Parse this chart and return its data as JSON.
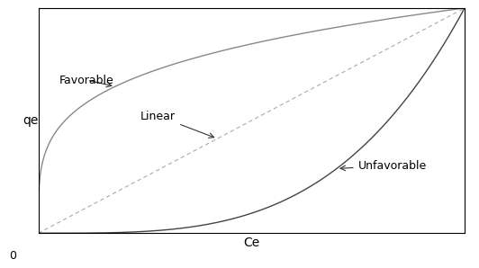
{
  "title": "",
  "xlabel": "Ce",
  "ylabel": "qe",
  "xlim": [
    0,
    1
  ],
  "ylim": [
    0,
    1
  ],
  "background_color": "#ffffff",
  "curve_color_favorable": "#888888",
  "curve_color_linear": "#aaaaaa",
  "curve_color_unfavorable": "#444444",
  "favorable_label": "Favorable",
  "linear_label": "Linear",
  "unfavorable_label": "Unfavorable",
  "label_fontsize": 9,
  "axis_label_fontsize": 10,
  "zero_label": "0",
  "favorable_power": 0.25,
  "unfavorable_power": 3.5,
  "fig_width": 5.32,
  "fig_height": 2.98,
  "dpi": 100
}
